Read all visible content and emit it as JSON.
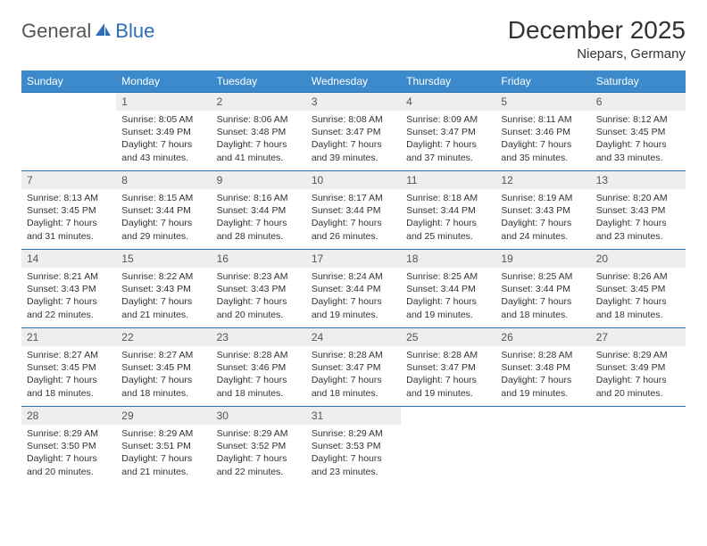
{
  "logo": {
    "part1": "General",
    "part2": "Blue"
  },
  "title": "December 2025",
  "location": "Niepars, Germany",
  "colors": {
    "header_bg": "#3c8acb",
    "header_text": "#ffffff",
    "rule": "#2a6fb5",
    "daynum_bg": "#eceef0",
    "logo_accent": "#2a6fb5",
    "body_text": "#333333"
  },
  "weekdays": [
    "Sunday",
    "Monday",
    "Tuesday",
    "Wednesday",
    "Thursday",
    "Friday",
    "Saturday"
  ],
  "weeks": [
    [
      {
        "n": "",
        "sr": "",
        "ss": "",
        "dl": ""
      },
      {
        "n": "1",
        "sr": "Sunrise: 8:05 AM",
        "ss": "Sunset: 3:49 PM",
        "dl": "Daylight: 7 hours and 43 minutes."
      },
      {
        "n": "2",
        "sr": "Sunrise: 8:06 AM",
        "ss": "Sunset: 3:48 PM",
        "dl": "Daylight: 7 hours and 41 minutes."
      },
      {
        "n": "3",
        "sr": "Sunrise: 8:08 AM",
        "ss": "Sunset: 3:47 PM",
        "dl": "Daylight: 7 hours and 39 minutes."
      },
      {
        "n": "4",
        "sr": "Sunrise: 8:09 AM",
        "ss": "Sunset: 3:47 PM",
        "dl": "Daylight: 7 hours and 37 minutes."
      },
      {
        "n": "5",
        "sr": "Sunrise: 8:11 AM",
        "ss": "Sunset: 3:46 PM",
        "dl": "Daylight: 7 hours and 35 minutes."
      },
      {
        "n": "6",
        "sr": "Sunrise: 8:12 AM",
        "ss": "Sunset: 3:45 PM",
        "dl": "Daylight: 7 hours and 33 minutes."
      }
    ],
    [
      {
        "n": "7",
        "sr": "Sunrise: 8:13 AM",
        "ss": "Sunset: 3:45 PM",
        "dl": "Daylight: 7 hours and 31 minutes."
      },
      {
        "n": "8",
        "sr": "Sunrise: 8:15 AM",
        "ss": "Sunset: 3:44 PM",
        "dl": "Daylight: 7 hours and 29 minutes."
      },
      {
        "n": "9",
        "sr": "Sunrise: 8:16 AM",
        "ss": "Sunset: 3:44 PM",
        "dl": "Daylight: 7 hours and 28 minutes."
      },
      {
        "n": "10",
        "sr": "Sunrise: 8:17 AM",
        "ss": "Sunset: 3:44 PM",
        "dl": "Daylight: 7 hours and 26 minutes."
      },
      {
        "n": "11",
        "sr": "Sunrise: 8:18 AM",
        "ss": "Sunset: 3:44 PM",
        "dl": "Daylight: 7 hours and 25 minutes."
      },
      {
        "n": "12",
        "sr": "Sunrise: 8:19 AM",
        "ss": "Sunset: 3:43 PM",
        "dl": "Daylight: 7 hours and 24 minutes."
      },
      {
        "n": "13",
        "sr": "Sunrise: 8:20 AM",
        "ss": "Sunset: 3:43 PM",
        "dl": "Daylight: 7 hours and 23 minutes."
      }
    ],
    [
      {
        "n": "14",
        "sr": "Sunrise: 8:21 AM",
        "ss": "Sunset: 3:43 PM",
        "dl": "Daylight: 7 hours and 22 minutes."
      },
      {
        "n": "15",
        "sr": "Sunrise: 8:22 AM",
        "ss": "Sunset: 3:43 PM",
        "dl": "Daylight: 7 hours and 21 minutes."
      },
      {
        "n": "16",
        "sr": "Sunrise: 8:23 AM",
        "ss": "Sunset: 3:43 PM",
        "dl": "Daylight: 7 hours and 20 minutes."
      },
      {
        "n": "17",
        "sr": "Sunrise: 8:24 AM",
        "ss": "Sunset: 3:44 PM",
        "dl": "Daylight: 7 hours and 19 minutes."
      },
      {
        "n": "18",
        "sr": "Sunrise: 8:25 AM",
        "ss": "Sunset: 3:44 PM",
        "dl": "Daylight: 7 hours and 19 minutes."
      },
      {
        "n": "19",
        "sr": "Sunrise: 8:25 AM",
        "ss": "Sunset: 3:44 PM",
        "dl": "Daylight: 7 hours and 18 minutes."
      },
      {
        "n": "20",
        "sr": "Sunrise: 8:26 AM",
        "ss": "Sunset: 3:45 PM",
        "dl": "Daylight: 7 hours and 18 minutes."
      }
    ],
    [
      {
        "n": "21",
        "sr": "Sunrise: 8:27 AM",
        "ss": "Sunset: 3:45 PM",
        "dl": "Daylight: 7 hours and 18 minutes."
      },
      {
        "n": "22",
        "sr": "Sunrise: 8:27 AM",
        "ss": "Sunset: 3:45 PM",
        "dl": "Daylight: 7 hours and 18 minutes."
      },
      {
        "n": "23",
        "sr": "Sunrise: 8:28 AM",
        "ss": "Sunset: 3:46 PM",
        "dl": "Daylight: 7 hours and 18 minutes."
      },
      {
        "n": "24",
        "sr": "Sunrise: 8:28 AM",
        "ss": "Sunset: 3:47 PM",
        "dl": "Daylight: 7 hours and 18 minutes."
      },
      {
        "n": "25",
        "sr": "Sunrise: 8:28 AM",
        "ss": "Sunset: 3:47 PM",
        "dl": "Daylight: 7 hours and 19 minutes."
      },
      {
        "n": "26",
        "sr": "Sunrise: 8:28 AM",
        "ss": "Sunset: 3:48 PM",
        "dl": "Daylight: 7 hours and 19 minutes."
      },
      {
        "n": "27",
        "sr": "Sunrise: 8:29 AM",
        "ss": "Sunset: 3:49 PM",
        "dl": "Daylight: 7 hours and 20 minutes."
      }
    ],
    [
      {
        "n": "28",
        "sr": "Sunrise: 8:29 AM",
        "ss": "Sunset: 3:50 PM",
        "dl": "Daylight: 7 hours and 20 minutes."
      },
      {
        "n": "29",
        "sr": "Sunrise: 8:29 AM",
        "ss": "Sunset: 3:51 PM",
        "dl": "Daylight: 7 hours and 21 minutes."
      },
      {
        "n": "30",
        "sr": "Sunrise: 8:29 AM",
        "ss": "Sunset: 3:52 PM",
        "dl": "Daylight: 7 hours and 22 minutes."
      },
      {
        "n": "31",
        "sr": "Sunrise: 8:29 AM",
        "ss": "Sunset: 3:53 PM",
        "dl": "Daylight: 7 hours and 23 minutes."
      },
      {
        "n": "",
        "sr": "",
        "ss": "",
        "dl": ""
      },
      {
        "n": "",
        "sr": "",
        "ss": "",
        "dl": ""
      },
      {
        "n": "",
        "sr": "",
        "ss": "",
        "dl": ""
      }
    ]
  ]
}
